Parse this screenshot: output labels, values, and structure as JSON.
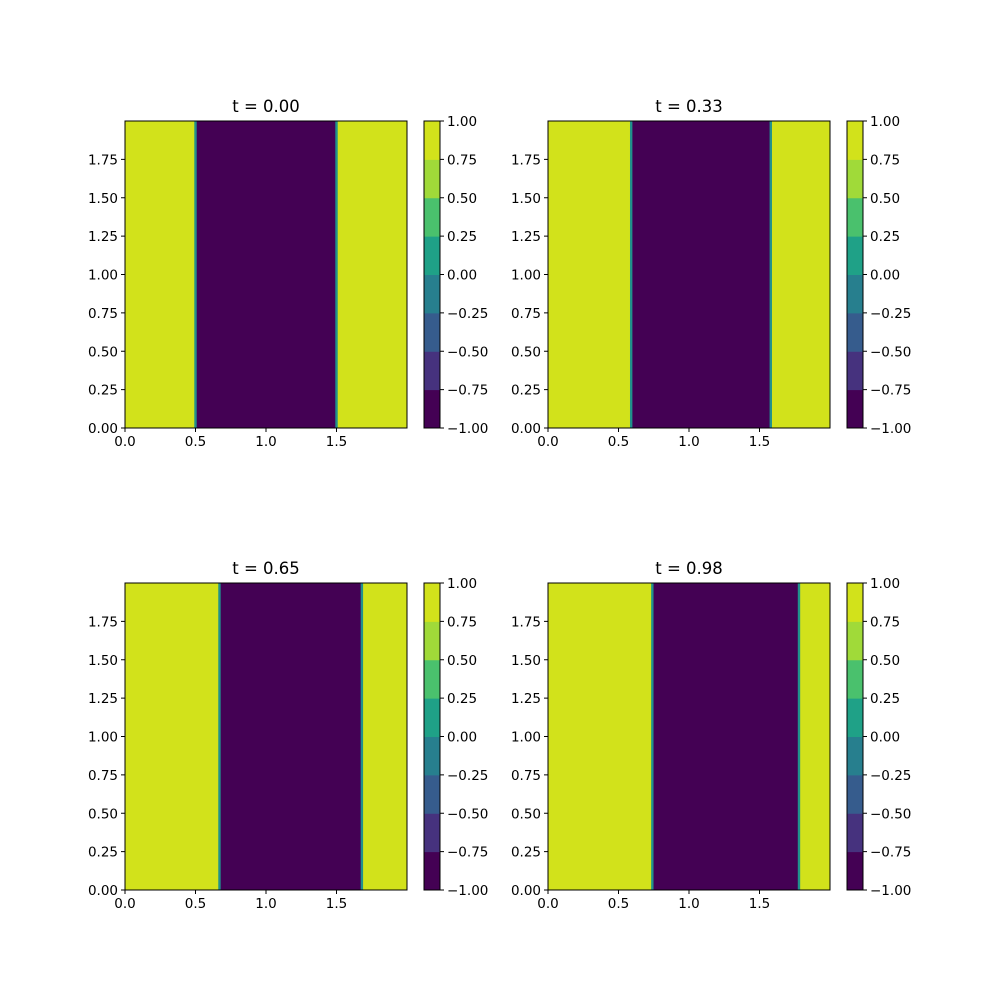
{
  "chart_data": {
    "type": "heatmap",
    "plot_kind": "filled-contour",
    "grid": false,
    "colorbar_ticks": [
      "1.00",
      "0.75",
      "0.50",
      "0.25",
      "0.00",
      "−0.25",
      "−0.50",
      "−0.75",
      "−1.00"
    ],
    "colorbar_levels": [
      -1.0,
      -0.75,
      -0.5,
      -0.25,
      0.0,
      0.25,
      0.5,
      0.75,
      1.0
    ],
    "level_colors": [
      "#440154",
      "#46327e",
      "#365c8d",
      "#277f8e",
      "#1fa187",
      "#4ac16d",
      "#a0da39",
      "#d2e21b"
    ],
    "panels": [
      {
        "title": "t = 0.00",
        "xlim": [
          0,
          2
        ],
        "ylim": [
          0,
          2
        ],
        "xticks": [
          "0.0",
          "0.5",
          "1.0",
          "1.5"
        ],
        "yticks": [
          "0.00",
          "0.25",
          "0.50",
          "0.75",
          "1.00",
          "1.25",
          "1.50",
          "1.75"
        ],
        "regions": [
          {
            "x0": 0.0,
            "x1": 0.5,
            "value": 1.0
          },
          {
            "x0": 0.5,
            "x1": 1.5,
            "value": -1.0
          },
          {
            "x0": 1.5,
            "x1": 2.0,
            "value": 1.0
          }
        ]
      },
      {
        "title": "t = 0.33",
        "xlim": [
          0,
          2
        ],
        "ylim": [
          0,
          2
        ],
        "xticks": [
          "0.0",
          "0.5",
          "1.0",
          "1.5"
        ],
        "yticks": [
          "0.00",
          "0.25",
          "0.50",
          "0.75",
          "1.00",
          "1.25",
          "1.50",
          "1.75"
        ],
        "regions": [
          {
            "x0": 0.0,
            "x1": 0.59,
            "value": 1.0
          },
          {
            "x0": 0.59,
            "x1": 1.58,
            "value": -1.0
          },
          {
            "x0": 1.58,
            "x1": 2.0,
            "value": 1.0
          }
        ]
      },
      {
        "title": "t = 0.65",
        "xlim": [
          0,
          2
        ],
        "ylim": [
          0,
          2
        ],
        "xticks": [
          "0.0",
          "0.5",
          "1.0",
          "1.5"
        ],
        "yticks": [
          "0.00",
          "0.25",
          "0.50",
          "0.75",
          "1.00",
          "1.25",
          "1.50",
          "1.75"
        ],
        "regions": [
          {
            "x0": 0.0,
            "x1": 0.67,
            "value": 1.0
          },
          {
            "x0": 0.67,
            "x1": 1.68,
            "value": -1.0
          },
          {
            "x0": 1.68,
            "x1": 2.0,
            "value": 1.0
          }
        ]
      },
      {
        "title": "t = 0.98",
        "xlim": [
          0,
          2
        ],
        "ylim": [
          0,
          2
        ],
        "xticks": [
          "0.0",
          "0.5",
          "1.0",
          "1.5"
        ],
        "yticks": [
          "0.00",
          "0.25",
          "0.50",
          "0.75",
          "1.00",
          "1.25",
          "1.50",
          "1.75"
        ],
        "regions": [
          {
            "x0": 0.0,
            "x1": 0.74,
            "value": 1.0
          },
          {
            "x0": 0.74,
            "x1": 1.78,
            "value": -1.0
          },
          {
            "x0": 1.78,
            "x1": 2.0,
            "value": 1.0
          }
        ]
      }
    ]
  }
}
